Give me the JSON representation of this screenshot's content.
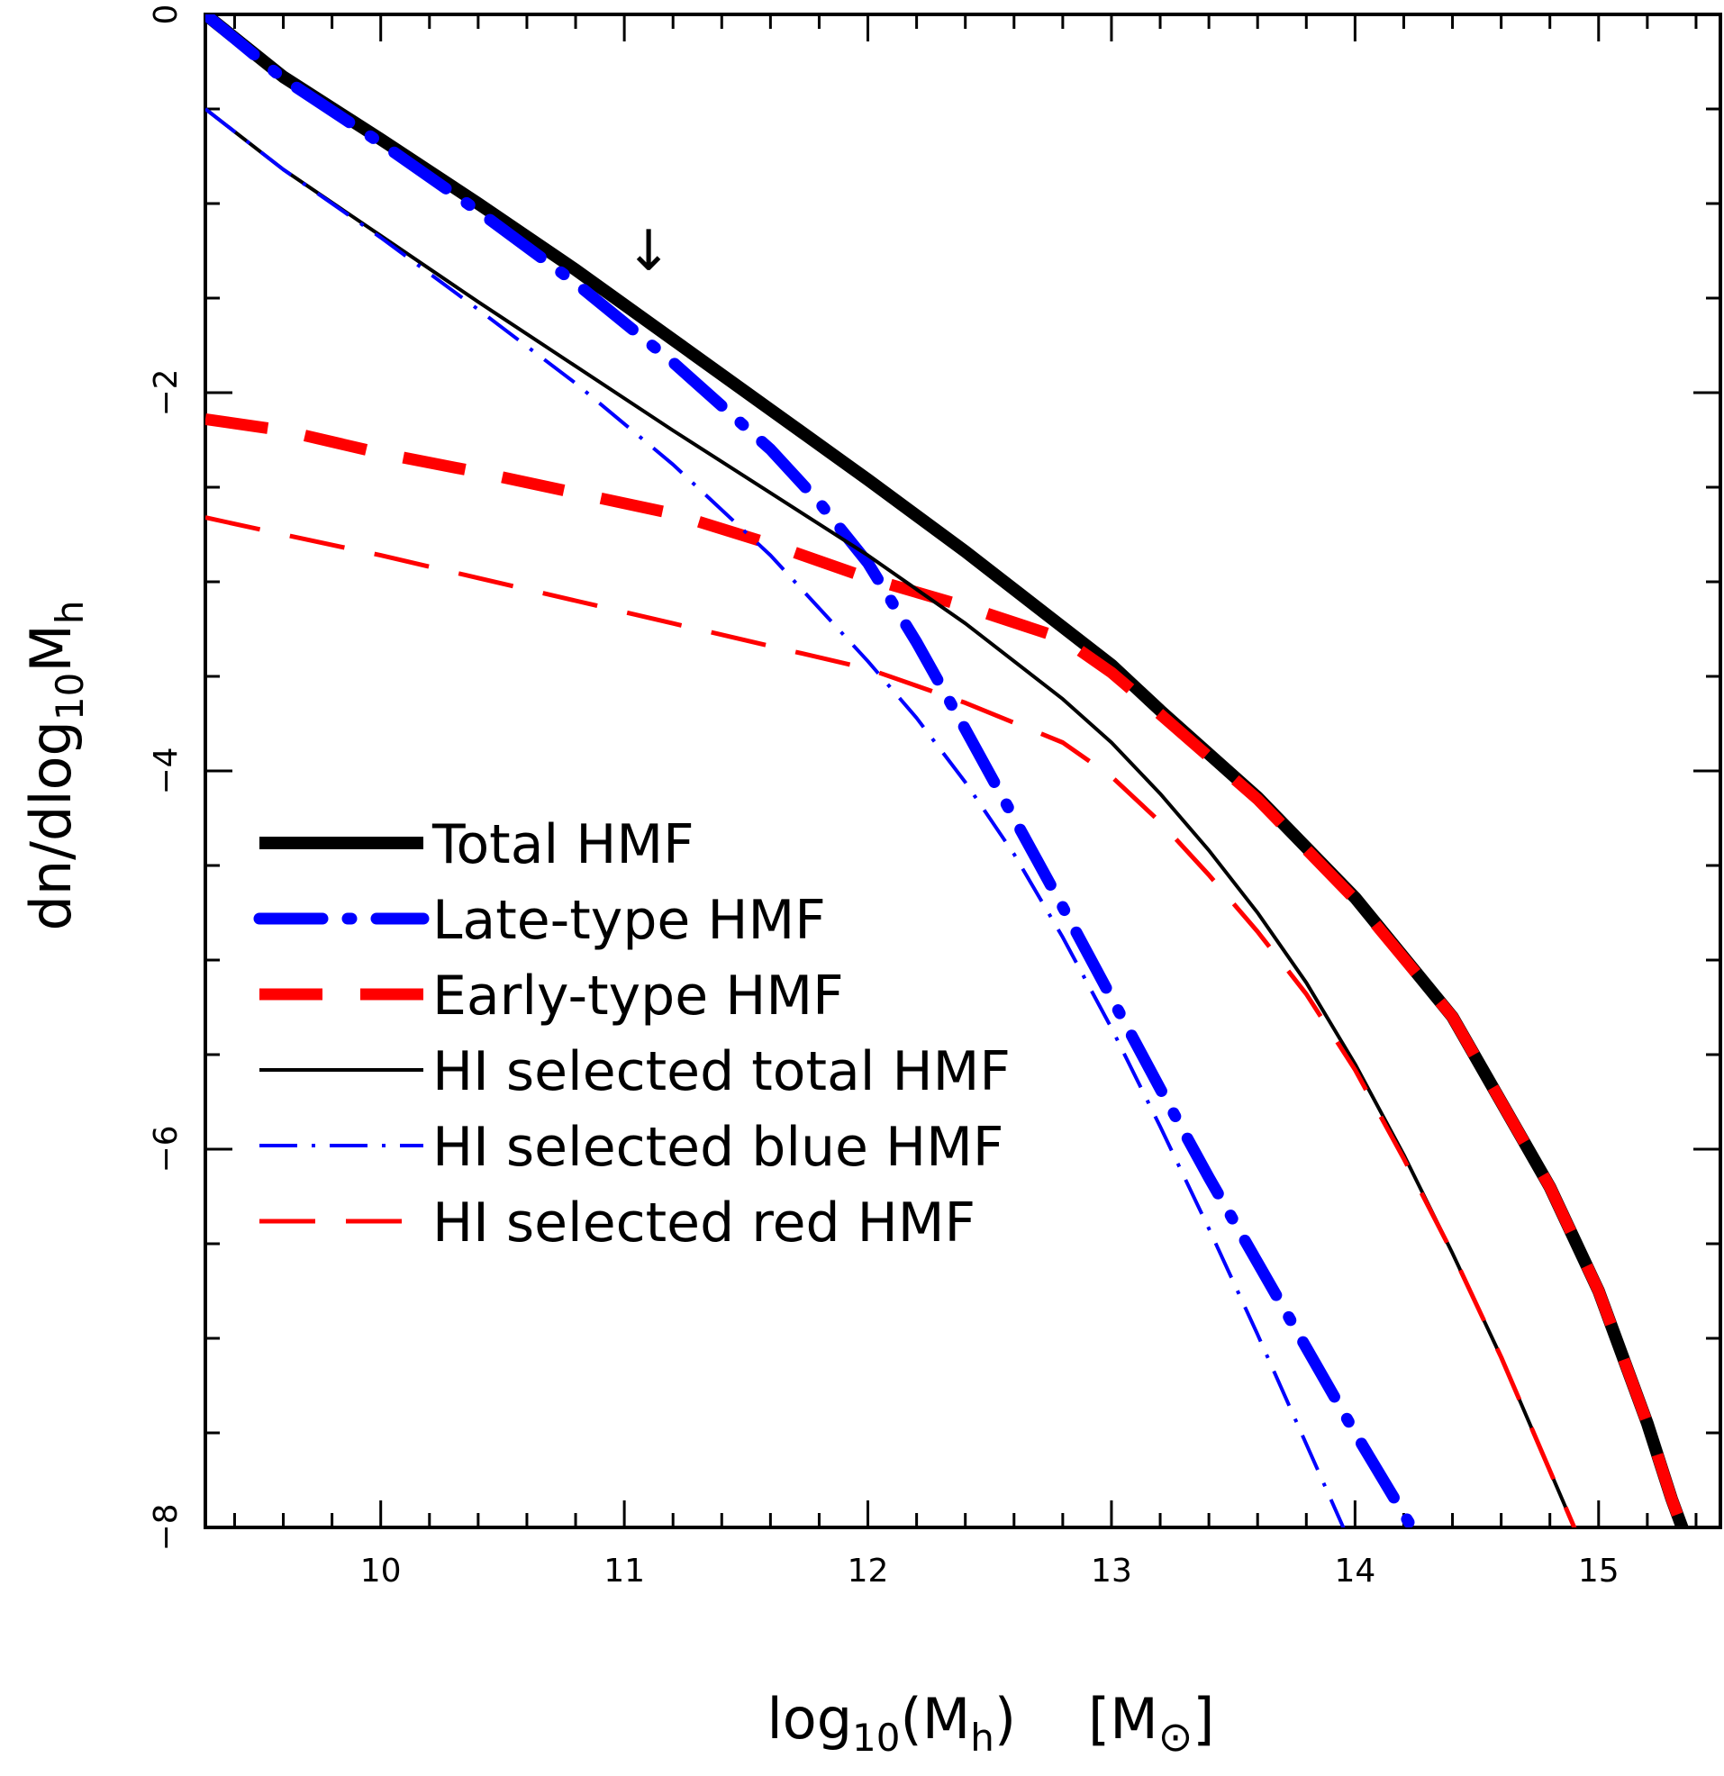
{
  "chart_data": {
    "type": "line",
    "xlabel": {
      "base": "log",
      "sub": "10",
      "mid": "(M",
      "sub2": "h",
      "end": ")",
      "unit_open": "[M",
      "unit_sym": "⊙",
      "unit_close": "]"
    },
    "ylabel": {
      "base": "dn/dlog",
      "sub": "10",
      "mid": "M",
      "sub2": "h"
    },
    "xlim": [
      9.28,
      15.5
    ],
    "ylim": [
      -8,
      0
    ],
    "xticks": [
      10,
      11,
      12,
      13,
      14,
      15
    ],
    "xtick_labels": [
      "10",
      "11",
      "12",
      "13",
      "14",
      "15"
    ],
    "yticks": [
      0,
      -2,
      -4,
      -6,
      -8
    ],
    "ytick_labels": [
      "0",
      "−2",
      "−4",
      "−6",
      "−8"
    ],
    "annotation": {
      "text": "↓",
      "x": 11.1,
      "y": -1.35
    },
    "legend_position": "lower-left",
    "series": [
      {
        "name": "Total HMF",
        "color": "#000000",
        "style": "thick-solid",
        "x": [
          9.28,
          9.6,
          10.0,
          10.4,
          10.8,
          11.2,
          11.6,
          12.0,
          12.4,
          12.8,
          13.0,
          13.2,
          13.6,
          14.0,
          14.4,
          14.8,
          15.0,
          15.2,
          15.3,
          15.4,
          15.45
        ],
        "y": [
          0.0,
          -0.33,
          -0.66,
          -1.0,
          -1.35,
          -1.72,
          -2.09,
          -2.46,
          -2.84,
          -3.24,
          -3.44,
          -3.68,
          -4.14,
          -4.67,
          -5.3,
          -6.2,
          -6.75,
          -7.45,
          -7.85,
          -8.2,
          -8.4
        ]
      },
      {
        "name": "Late-type HMF",
        "color": "#0000ff",
        "style": "thick-dashdot",
        "x": [
          9.28,
          9.6,
          10.0,
          10.4,
          10.8,
          11.2,
          11.6,
          11.8,
          12.0,
          12.2,
          12.4,
          12.6,
          12.8,
          13.0,
          13.2,
          13.4,
          13.6,
          13.8,
          14.0,
          14.2,
          14.4,
          14.5
        ],
        "y": [
          0.0,
          -0.34,
          -0.68,
          -1.04,
          -1.42,
          -1.84,
          -2.3,
          -2.58,
          -2.9,
          -3.32,
          -3.78,
          -4.25,
          -4.72,
          -5.2,
          -5.68,
          -6.15,
          -6.6,
          -7.05,
          -7.5,
          -7.93,
          -8.35,
          -8.55
        ]
      },
      {
        "name": "Early-type HMF",
        "color": "#ff0000",
        "style": "thick-dash",
        "x": [
          9.28,
          9.6,
          10.0,
          10.4,
          10.8,
          11.2,
          11.6,
          12.0,
          12.4,
          12.8,
          13.0,
          13.2,
          13.6,
          14.0,
          14.4,
          14.8,
          15.0,
          15.2,
          15.3,
          15.4,
          15.45
        ],
        "y": [
          -2.14,
          -2.2,
          -2.32,
          -2.42,
          -2.53,
          -2.64,
          -2.8,
          -2.98,
          -3.13,
          -3.3,
          -3.48,
          -3.7,
          -4.15,
          -4.68,
          -5.3,
          -6.2,
          -6.75,
          -7.45,
          -7.85,
          -8.2,
          -8.4
        ]
      },
      {
        "name": "HI selected total HMF",
        "color": "#000000",
        "style": "thin-solid",
        "x": [
          9.28,
          9.6,
          10.0,
          10.4,
          10.8,
          11.2,
          11.6,
          12.0,
          12.4,
          12.8,
          13.0,
          13.2,
          13.4,
          13.6,
          13.8,
          14.0,
          14.2,
          14.4,
          14.6,
          14.8,
          15.0,
          15.1
        ],
        "y": [
          -0.5,
          -0.82,
          -1.17,
          -1.52,
          -1.86,
          -2.2,
          -2.53,
          -2.86,
          -3.22,
          -3.62,
          -3.85,
          -4.12,
          -4.42,
          -4.75,
          -5.12,
          -5.55,
          -6.03,
          -6.55,
          -7.1,
          -7.7,
          -8.3,
          -8.6
        ]
      },
      {
        "name": "HI selected blue HMF",
        "color": "#0000ff",
        "style": "thin-dashdot",
        "x": [
          9.28,
          9.6,
          10.0,
          10.4,
          10.8,
          11.2,
          11.6,
          11.8,
          12.0,
          12.2,
          12.4,
          12.6,
          12.8,
          13.0,
          13.2,
          13.4,
          13.6,
          13.8,
          14.0,
          14.15
        ],
        "y": [
          -0.5,
          -0.82,
          -1.18,
          -1.56,
          -1.95,
          -2.38,
          -2.86,
          -3.14,
          -3.42,
          -3.72,
          -4.06,
          -4.44,
          -4.88,
          -5.36,
          -5.88,
          -6.42,
          -6.98,
          -7.56,
          -8.14,
          -8.6
        ]
      },
      {
        "name": "HI selected red HMF",
        "color": "#ff0000",
        "style": "thin-dash",
        "x": [
          9.28,
          9.6,
          10.0,
          10.4,
          10.8,
          11.2,
          11.6,
          12.0,
          12.4,
          12.8,
          13.0,
          13.2,
          13.4,
          13.6,
          13.8,
          14.0,
          14.2,
          14.4,
          14.6,
          14.8,
          15.0,
          15.1
        ],
        "y": [
          -2.66,
          -2.75,
          -2.86,
          -2.98,
          -3.1,
          -3.22,
          -3.34,
          -3.46,
          -3.64,
          -3.85,
          -4.03,
          -4.27,
          -4.55,
          -4.85,
          -5.18,
          -5.58,
          -6.05,
          -6.55,
          -7.1,
          -7.7,
          -8.3,
          -8.6
        ]
      }
    ]
  }
}
